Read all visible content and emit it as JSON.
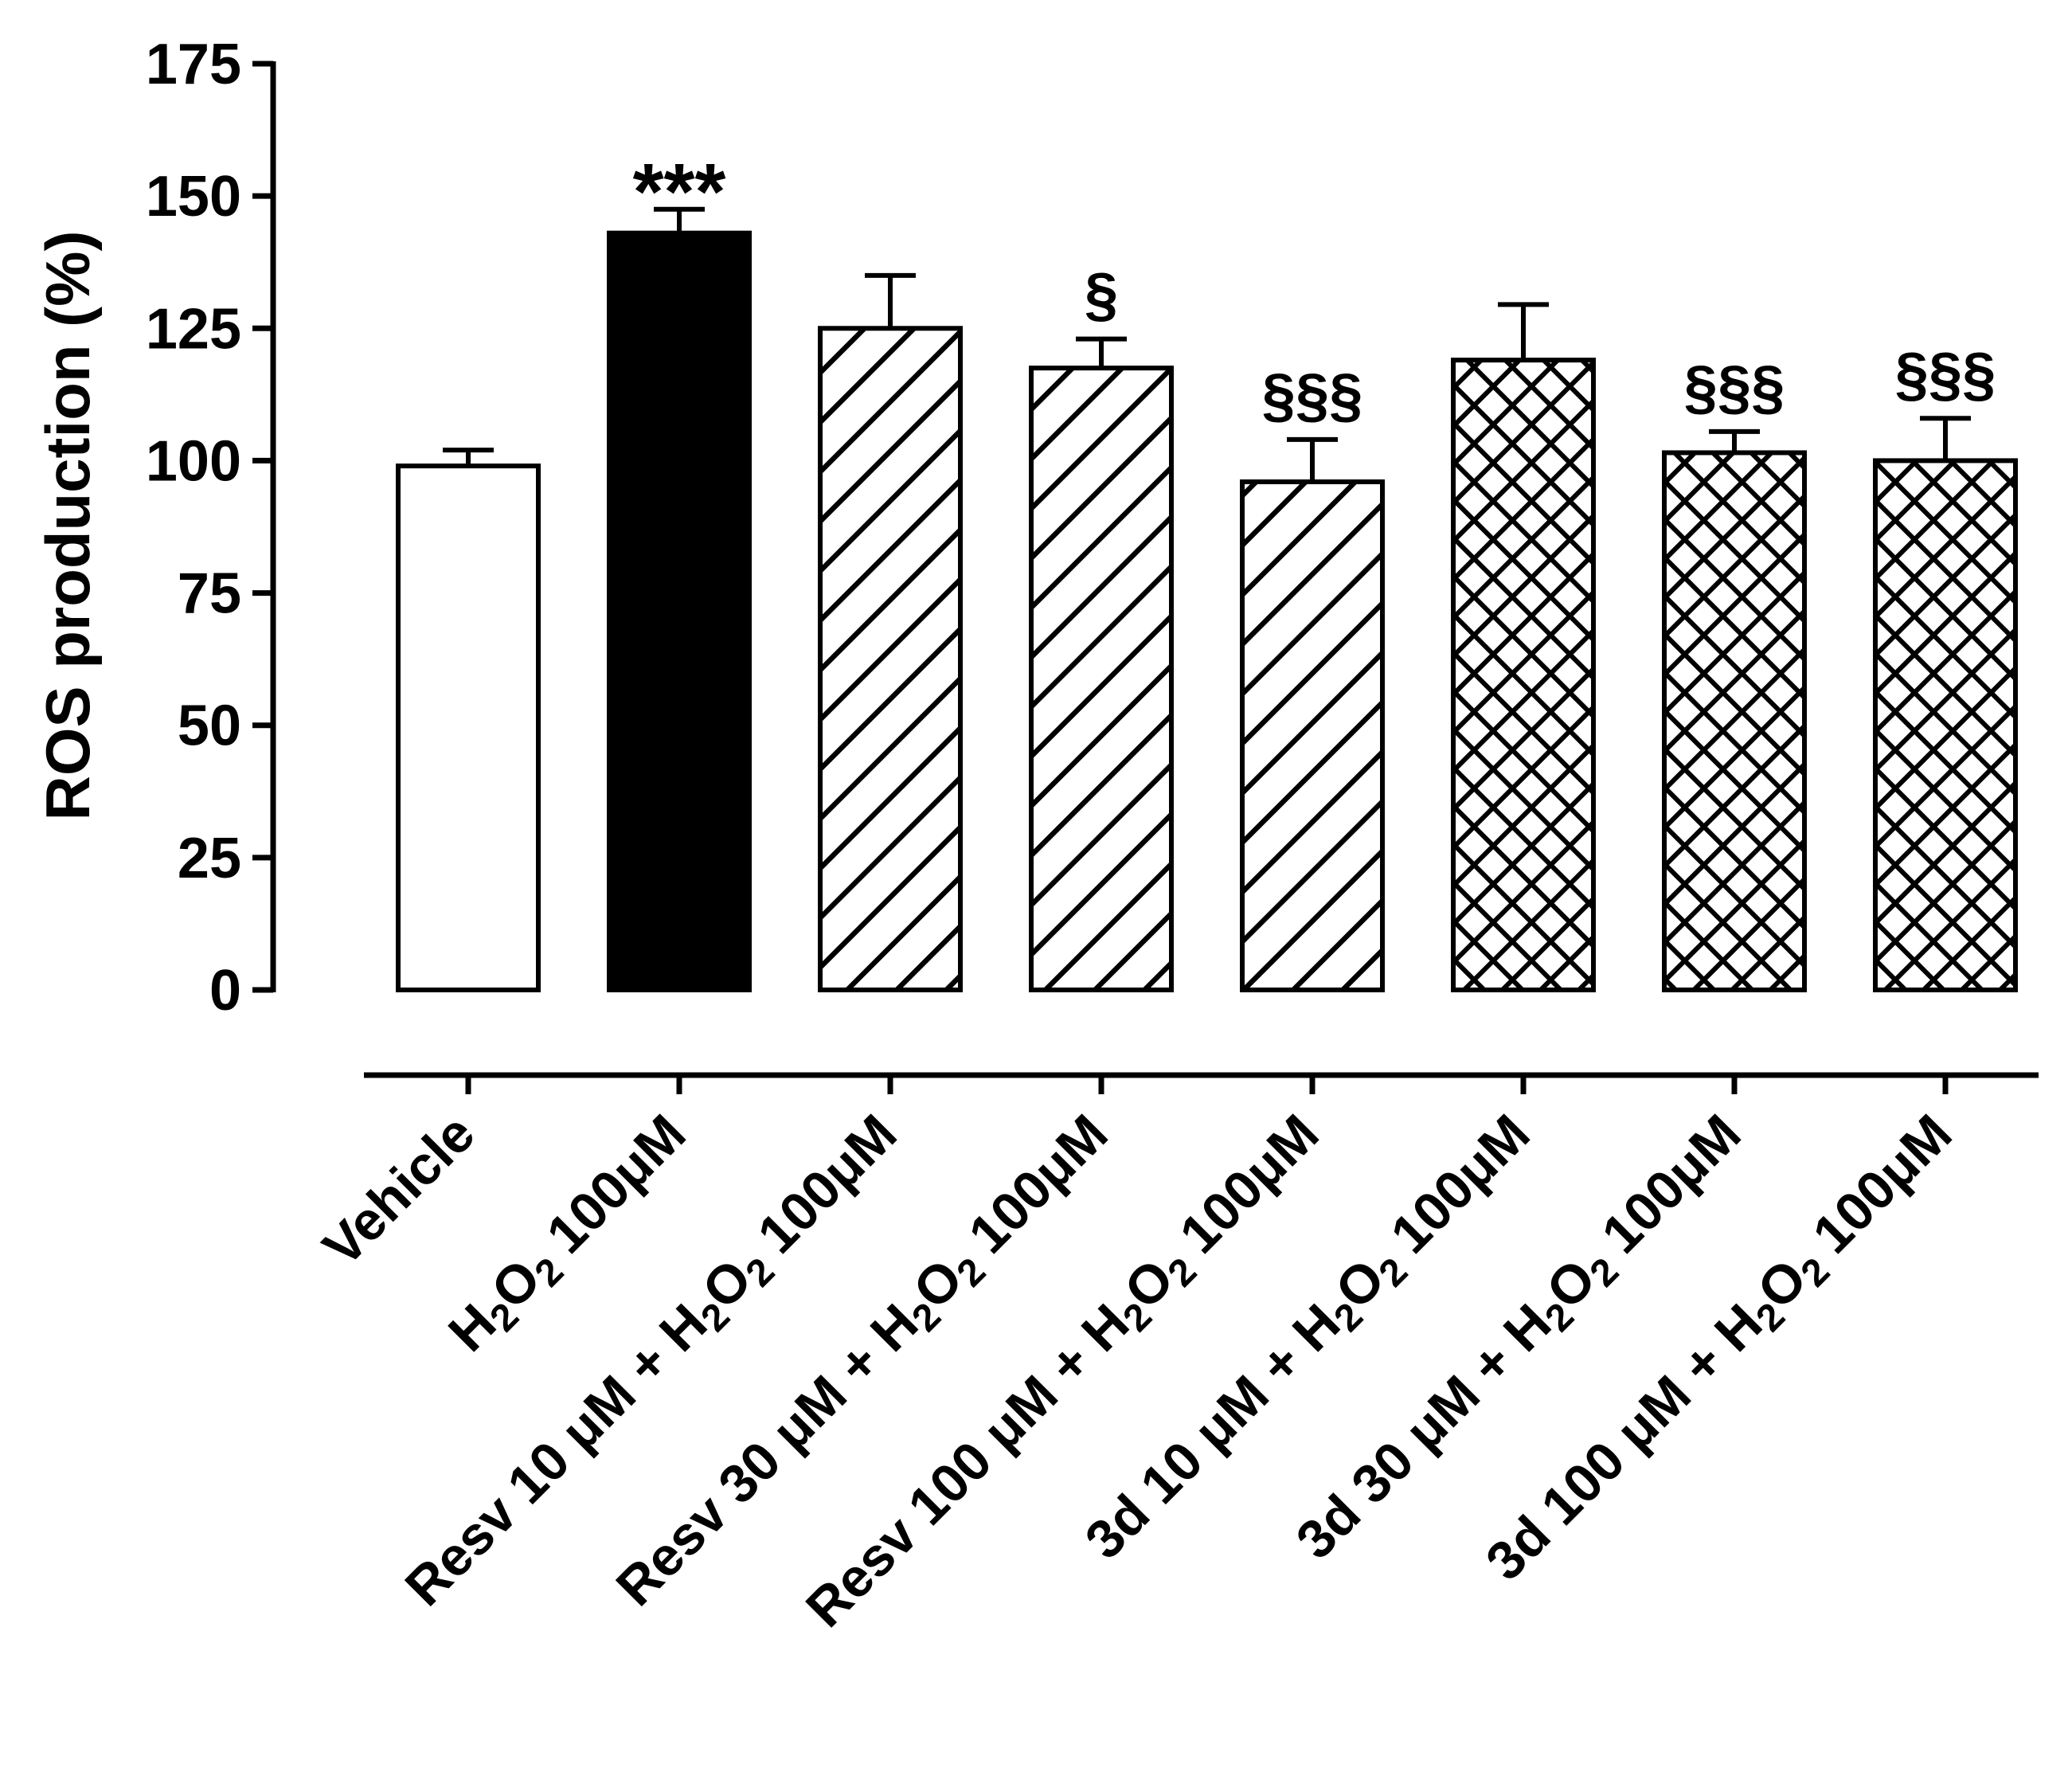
{
  "chart_data": {
    "type": "bar",
    "title": "",
    "ylabel": "ROS production (%)",
    "xlabel": "",
    "ylim": [
      0,
      175
    ],
    "yticks": [
      0,
      25,
      50,
      75,
      100,
      125,
      150,
      175
    ],
    "ytick_labels": [
      "0",
      "25",
      "50",
      "75",
      "100",
      "125",
      "150",
      "175"
    ],
    "grid": false,
    "legend": "none",
    "categories": [
      "Vehicle",
      "H2O2 100μM",
      "Resv 10 μM + H2O2 100μM",
      "Resv 30 μM + H2O2 100μM",
      "Resv 100 μM + H2O2 100μM",
      "3d 10 μM + H2O2 100μM",
      "3d 30 μM + H2O2 100μM",
      "3d 100 μM + H2O2 100μM"
    ],
    "category_label_parts": [
      [
        {
          "t": "Vehicle",
          "sub": false
        }
      ],
      [
        {
          "t": "H",
          "sub": false
        },
        {
          "t": "2",
          "sub": true
        },
        {
          "t": "O",
          "sub": false
        },
        {
          "t": "2",
          "sub": true
        },
        {
          "t": " 100μM",
          "sub": false
        }
      ],
      [
        {
          "t": "Resv 10 μM + H",
          "sub": false
        },
        {
          "t": "2",
          "sub": true
        },
        {
          "t": "O",
          "sub": false
        },
        {
          "t": "2",
          "sub": true
        },
        {
          "t": " 100μM",
          "sub": false
        }
      ],
      [
        {
          "t": "Resv 30 μM + H",
          "sub": false
        },
        {
          "t": "2",
          "sub": true
        },
        {
          "t": "O",
          "sub": false
        },
        {
          "t": "2",
          "sub": true
        },
        {
          "t": " 100μM",
          "sub": false
        }
      ],
      [
        {
          "t": "Resv 100 μM + H",
          "sub": false
        },
        {
          "t": "2",
          "sub": true
        },
        {
          "t": "O",
          "sub": false
        },
        {
          "t": "2",
          "sub": true
        },
        {
          "t": " 100μM",
          "sub": false
        }
      ],
      [
        {
          "t": "3d 10 μM + H",
          "sub": false
        },
        {
          "t": "2",
          "sub": true
        },
        {
          "t": "O",
          "sub": false
        },
        {
          "t": "2",
          "sub": true
        },
        {
          "t": " 100μM",
          "sub": false
        }
      ],
      [
        {
          "t": "3d 30 μM + H",
          "sub": false
        },
        {
          "t": "2",
          "sub": true
        },
        {
          "t": "O",
          "sub": false
        },
        {
          "t": "2",
          "sub": true
        },
        {
          "t": " 100μM",
          "sub": false
        }
      ],
      [
        {
          "t": "3d 100 μM + H",
          "sub": false
        },
        {
          "t": "2",
          "sub": true
        },
        {
          "t": "O",
          "sub": false
        },
        {
          "t": "2",
          "sub": true
        },
        {
          "t": " 100μM",
          "sub": false
        }
      ]
    ],
    "values": [
      99,
      143,
      125,
      117.5,
      96,
      119,
      101.5,
      100
    ],
    "errors": [
      3,
      4.5,
      10,
      5.5,
      8,
      10.5,
      4,
      8
    ],
    "fills": [
      "white",
      "black",
      "diagonal",
      "diagonal",
      "diagonal",
      "crosshatch",
      "crosshatch",
      "crosshatch"
    ],
    "annotations": [
      "",
      "***",
      "",
      "§",
      "§§§",
      "",
      "§§§",
      "§§§"
    ]
  },
  "colors": {
    "ink": "#000000",
    "background": "#ffffff"
  }
}
